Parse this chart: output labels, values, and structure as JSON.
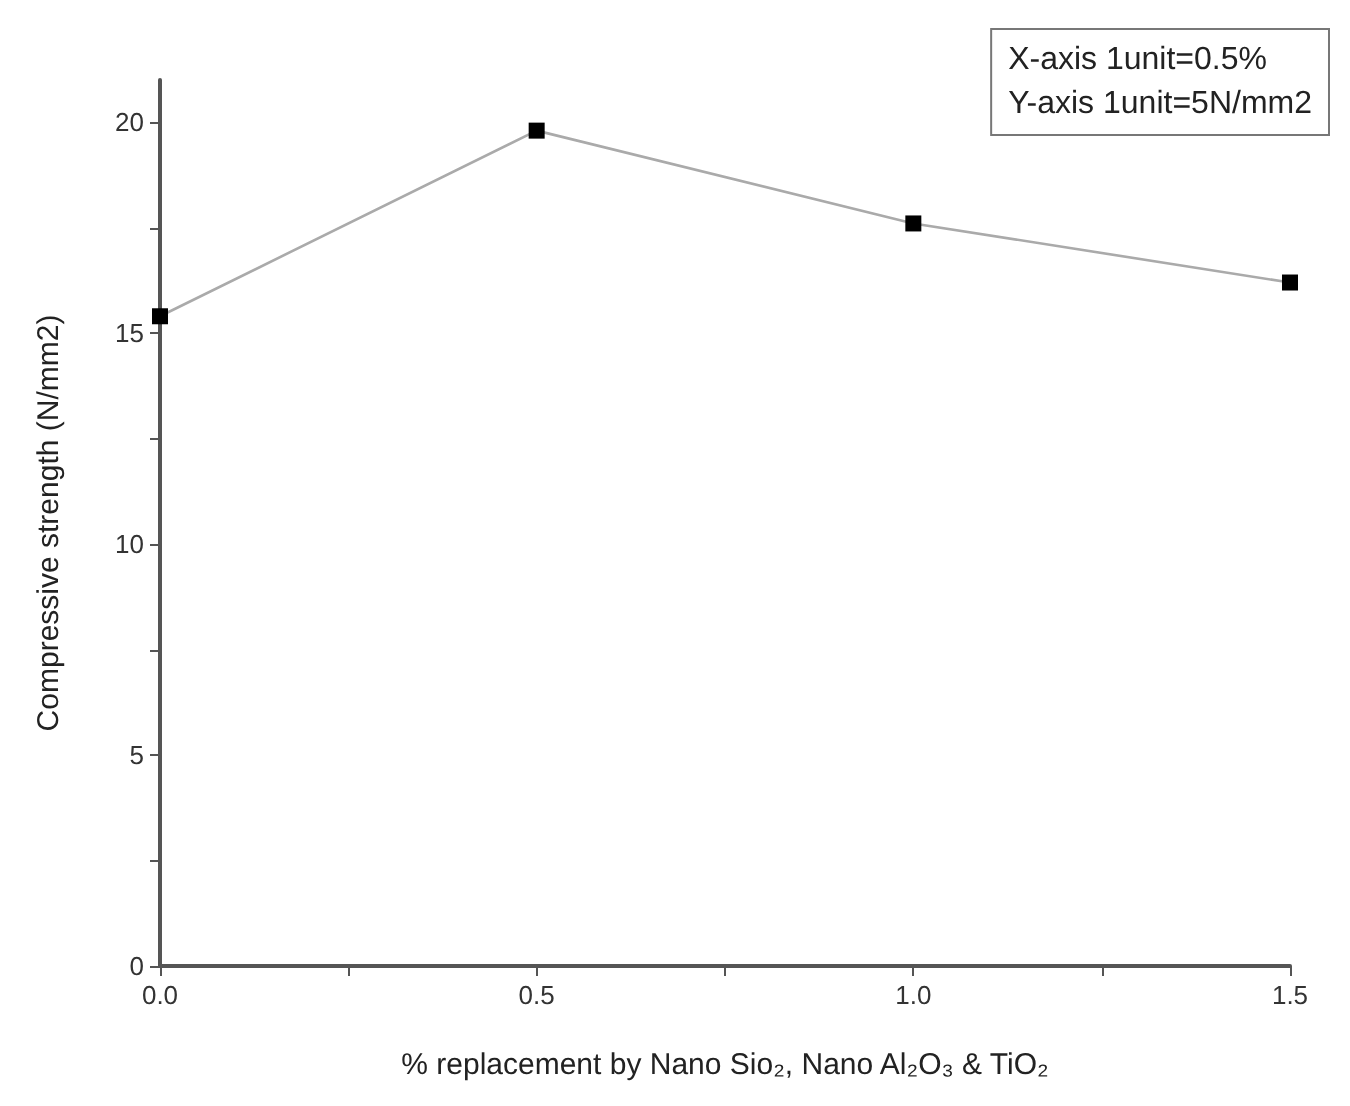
{
  "chart_data": {
    "type": "line",
    "xlabel": "% replacement by Nano Sio₂, Nano Al₂O₃ & TiO₂",
    "ylabel": "Compressive strength (N/mm2)",
    "annotations": [
      "X-axis 1unit=0.5%\nY-axis 1unit=5N/mm2"
    ],
    "x": [
      0,
      0.5,
      1.0,
      1.5
    ],
    "series": [
      {
        "color": "#000000",
        "values": [
          15.4,
          19.8,
          17.6,
          16.2
        ]
      }
    ],
    "xlim": [
      0,
      1.5
    ],
    "xticks": [
      {
        "value": 0,
        "label": "0.0"
      },
      {
        "value": 0.25,
        "label": null
      },
      {
        "value": 0.5,
        "label": "0.5"
      },
      {
        "value": 0.75,
        "label": null
      },
      {
        "value": 1.0,
        "label": "1.0"
      },
      {
        "value": 1.25,
        "label": null
      },
      {
        "value": 1.5,
        "label": "1.5"
      }
    ],
    "ylim": [
      0,
      21
    ],
    "yticks": [
      0,
      {
        "value": 2.5,
        "label": null
      },
      5,
      {
        "value": 7.5,
        "label": null
      },
      10,
      {
        "value": 12.5,
        "label": null
      },
      15,
      {
        "value": 17.5,
        "label": null
      },
      20
    ],
    "marker": "square",
    "grid": false
  }
}
